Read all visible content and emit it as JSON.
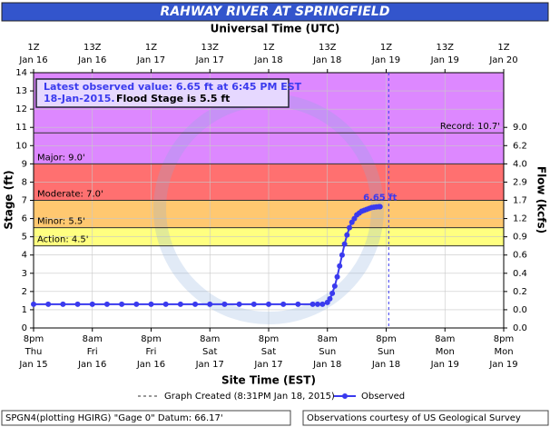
{
  "chart_data": {
    "type": "line",
    "title": "RAHWAY RIVER AT SPRINGFIELD",
    "top_axis_title": "Universal Time (UTC)",
    "x_label": "Site Time (EST)",
    "y_label": "Stage (ft)",
    "y2_label": "Flow (kcfs)",
    "xlim": [
      "2015-01-15T20:00",
      "2015-01-19T20:00"
    ],
    "xticks": [
      {
        "value": "2015-01-15T20:00",
        "label": [
          "8pm",
          "Thu",
          "Jan 15"
        ]
      },
      {
        "value": "2015-01-16T08:00",
        "label": [
          "8am",
          "Fri",
          "Jan 16"
        ]
      },
      {
        "value": "2015-01-16T20:00",
        "label": [
          "8pm",
          "Fri",
          "Jan 16"
        ]
      },
      {
        "value": "2015-01-17T08:00",
        "label": [
          "8am",
          "Sat",
          "Jan 17"
        ]
      },
      {
        "value": "2015-01-17T20:00",
        "label": [
          "8pm",
          "Sat",
          "Jan 17"
        ]
      },
      {
        "value": "2015-01-18T08:00",
        "label": [
          "8am",
          "Sun",
          "Jan 18"
        ]
      },
      {
        "value": "2015-01-18T20:00",
        "label": [
          "8pm",
          "Sun",
          "Jan 18"
        ]
      },
      {
        "value": "2015-01-19T08:00",
        "label": [
          "8am",
          "Mon",
          "Jan 19"
        ]
      },
      {
        "value": "2015-01-19T20:00",
        "label": [
          "8pm",
          "Mon",
          "Jan 19"
        ]
      }
    ],
    "x2ticks": [
      {
        "value": "2015-01-15T20:00",
        "label": [
          "1Z",
          "Jan 16"
        ]
      },
      {
        "value": "2015-01-16T08:00",
        "label": [
          "13Z",
          "Jan 16"
        ]
      },
      {
        "value": "2015-01-16T20:00",
        "label": [
          "1Z",
          "Jan 17"
        ]
      },
      {
        "value": "2015-01-17T08:00",
        "label": [
          "13Z",
          "Jan 17"
        ]
      },
      {
        "value": "2015-01-17T20:00",
        "label": [
          "1Z",
          "Jan 18"
        ]
      },
      {
        "value": "2015-01-18T08:00",
        "label": [
          "13Z",
          "Jan 18"
        ]
      },
      {
        "value": "2015-01-18T20:00",
        "label": [
          "1Z",
          "Jan 19"
        ]
      },
      {
        "value": "2015-01-19T08:00",
        "label": [
          "13Z",
          "Jan 19"
        ]
      },
      {
        "value": "2015-01-19T20:00",
        "label": [
          "1Z",
          "Jan 20"
        ]
      }
    ],
    "ylim": [
      0,
      14
    ],
    "yticks": [
      0,
      1,
      2,
      3,
      4,
      5,
      6,
      7,
      8,
      9,
      10,
      11,
      12,
      13,
      14
    ],
    "y2ticks": [
      {
        "value": 0,
        "label": "0.0"
      },
      {
        "value": 1,
        "label": "0.0"
      },
      {
        "value": 2,
        "label": "0.2"
      },
      {
        "value": 3,
        "label": "0.4"
      },
      {
        "value": 4,
        "label": "0.6"
      },
      {
        "value": 5,
        "label": "0.9"
      },
      {
        "value": 6,
        "label": "1.2"
      },
      {
        "value": 7,
        "label": "1.7"
      },
      {
        "value": 8,
        "label": "2.9"
      },
      {
        "value": 9,
        "label": "4.0"
      },
      {
        "value": 10,
        "label": "6.2"
      },
      {
        "value": 11,
        "label": "9.0"
      }
    ],
    "grid": true,
    "flood_categories": [
      {
        "name": "Action: 4.5'",
        "value": 4.5,
        "color": "#ffff80"
      },
      {
        "name": "Minor: 5.5'",
        "value": 5.5,
        "color": "#ffc870"
      },
      {
        "name": "Moderate: 7.0'",
        "value": 7.0,
        "color": "#ff7070"
      },
      {
        "name": "Major: 9.0'",
        "value": 9.0,
        "color": "#dd88ff"
      }
    ],
    "record": {
      "name": "Record: 10.7'",
      "value": 10.7
    },
    "graph_created": {
      "name": "Graph Created (8:31PM Jan 18, 2015)",
      "x": "2015-01-18T20:31"
    },
    "series": [
      {
        "name": "Observed",
        "color": "#3a3aee",
        "x": [
          "2015-01-15T20:00",
          "2015-01-15T23:00",
          "2015-01-16T02:00",
          "2015-01-16T05:00",
          "2015-01-16T08:00",
          "2015-01-16T11:00",
          "2015-01-16T14:00",
          "2015-01-16T17:00",
          "2015-01-16T20:00",
          "2015-01-16T23:00",
          "2015-01-17T02:00",
          "2015-01-17T05:00",
          "2015-01-17T08:00",
          "2015-01-17T11:00",
          "2015-01-17T14:00",
          "2015-01-17T17:00",
          "2015-01-17T20:00",
          "2015-01-17T23:00",
          "2015-01-18T02:00",
          "2015-01-18T05:00",
          "2015-01-18T06:00",
          "2015-01-18T07:00",
          "2015-01-18T08:00",
          "2015-01-18T08:30",
          "2015-01-18T09:00",
          "2015-01-18T09:30",
          "2015-01-18T10:00",
          "2015-01-18T10:30",
          "2015-01-18T11:00",
          "2015-01-18T11:30",
          "2015-01-18T12:00",
          "2015-01-18T12:30",
          "2015-01-18T13:00",
          "2015-01-18T13:30",
          "2015-01-18T14:00",
          "2015-01-18T14:30",
          "2015-01-18T15:00",
          "2015-01-18T15:30",
          "2015-01-18T16:00",
          "2015-01-18T16:30",
          "2015-01-18T17:00",
          "2015-01-18T17:30",
          "2015-01-18T18:00",
          "2015-01-18T18:30",
          "2015-01-18T18:45"
        ],
        "values": [
          1.3,
          1.3,
          1.3,
          1.3,
          1.3,
          1.3,
          1.3,
          1.3,
          1.3,
          1.3,
          1.3,
          1.3,
          1.3,
          1.3,
          1.3,
          1.3,
          1.3,
          1.3,
          1.3,
          1.3,
          1.3,
          1.3,
          1.4,
          1.6,
          1.9,
          2.3,
          2.8,
          3.4,
          4.0,
          4.6,
          5.1,
          5.5,
          5.8,
          6.0,
          6.2,
          6.3,
          6.4,
          6.45,
          6.5,
          6.55,
          6.6,
          6.62,
          6.64,
          6.65,
          6.65
        ],
        "value_labels": [
          null,
          null,
          null,
          null,
          null,
          null,
          null,
          null,
          null,
          null,
          null,
          null,
          null,
          null,
          null,
          null,
          null,
          null,
          null,
          null,
          null,
          null,
          null,
          null,
          null,
          null,
          null,
          null,
          null,
          null,
          null,
          null,
          null,
          null,
          null,
          null,
          null,
          null,
          null,
          null,
          null,
          null,
          null,
          null,
          "6.65 ft"
        ]
      }
    ],
    "annotation": {
      "line1": "Latest observed value: 6.65 ft at 6:45 PM EST",
      "date": "18-Jan-2015.",
      "flood_stage": "Flood Stage is 5.5 ft"
    },
    "footer": {
      "gage": "SPGN4(plotting HGIRG) \"Gage 0\" Datum: 66.17'",
      "credit": "Observations courtesy of US Geological Survey"
    }
  }
}
